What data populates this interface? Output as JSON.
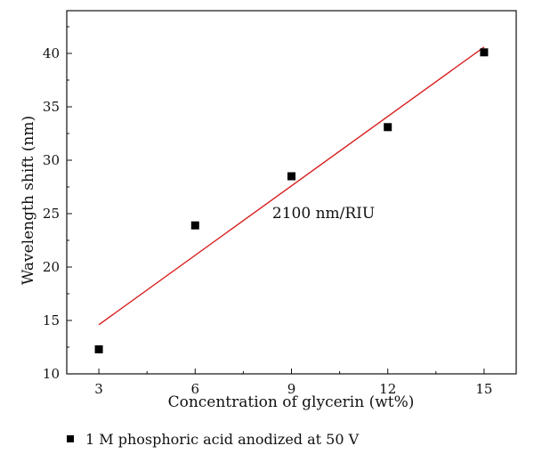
{
  "chart_data": {
    "type": "scatter",
    "title": "",
    "xlabel": "Concentration of glycerin (wt%)",
    "ylabel": "Wavelength shift (nm)",
    "xlim": [
      2,
      16
    ],
    "ylim": [
      10,
      44
    ],
    "xticks": [
      3,
      6,
      9,
      12,
      15
    ],
    "yticks": [
      10,
      15,
      20,
      25,
      30,
      35,
      40
    ],
    "grid": false,
    "series": [
      {
        "name": "1 M phosphoric acid anodized at 50 V",
        "marker": "square",
        "color": "#000000",
        "x": [
          3,
          6,
          9,
          12,
          15
        ],
        "y": [
          12.3,
          23.9,
          28.5,
          33.1,
          40.1
        ]
      }
    ],
    "fit_line": {
      "color": "#d81e1e",
      "x": [
        3,
        15
      ],
      "y": [
        14.6,
        40.6
      ]
    },
    "annotation": {
      "text": "2100 nm/RIU",
      "x": 10.0,
      "y": 24.6
    },
    "legend_placement": "bottom-left"
  }
}
